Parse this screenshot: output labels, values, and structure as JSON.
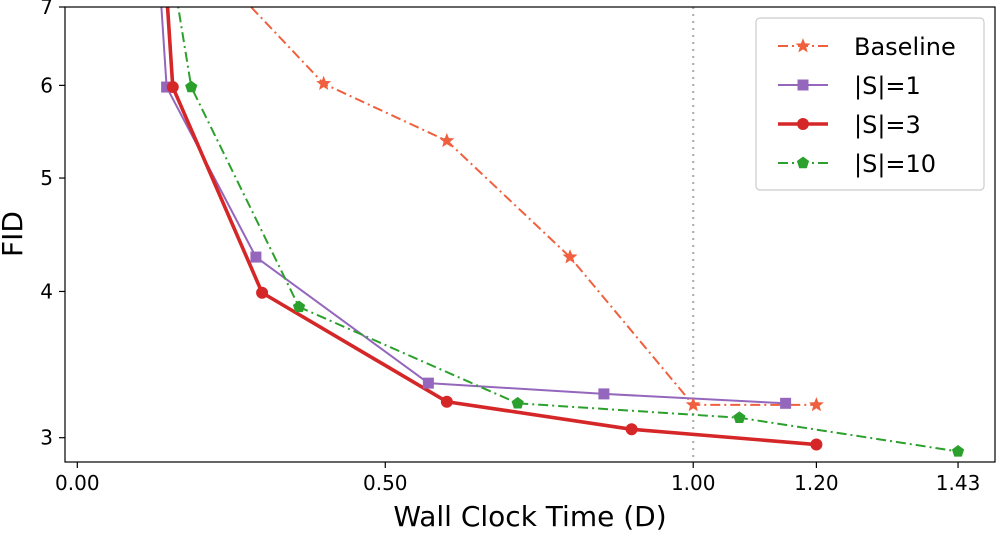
{
  "chart_data": {
    "type": "line",
    "title": "",
    "xlabel": "Wall Clock Time (D)",
    "ylabel": "FID",
    "xlim": [
      -0.02,
      1.49
    ],
    "ylim": [
      2.86,
      7.0
    ],
    "yscale": "log",
    "x_ticks": [
      {
        "value": 0.0,
        "label": "0.00"
      },
      {
        "value": 0.5,
        "label": "0.50"
      },
      {
        "value": 1.0,
        "label": "1.00"
      },
      {
        "value": 1.2,
        "label": "1.20"
      },
      {
        "value": 1.43,
        "label": "1.43"
      }
    ],
    "y_ticks": [
      {
        "value": 3,
        "label": "3"
      },
      {
        "value": 4,
        "label": "4"
      },
      {
        "value": 5,
        "label": "5"
      },
      {
        "value": 6,
        "label": "6"
      },
      {
        "value": 7,
        "label": "7"
      }
    ],
    "reference_line": {
      "x": 1.0,
      "color": "#b0b0b0",
      "style": "dotted"
    },
    "grid": false,
    "legend_position": "top-right",
    "series": [
      {
        "name": "Baseline",
        "color": "#f0603e",
        "line_style": "dashdot",
        "marker": "star",
        "x": [
          0.26,
          0.4,
          0.6,
          0.8,
          1.0,
          1.2
        ],
        "y": [
          7.2,
          6.02,
          5.38,
          4.28,
          3.2,
          3.2
        ]
      },
      {
        "name": "|S|=1",
        "color": "#9467bd",
        "line_style": "solid",
        "marker": "square",
        "x": [
          0.135,
          0.145,
          0.29,
          0.57,
          0.855,
          1.15
        ],
        "y": [
          7.2,
          5.98,
          4.28,
          3.34,
          3.27,
          3.21
        ]
      },
      {
        "name": "|S|=3",
        "color": "#d62728",
        "line_style": "solid",
        "marker": "circle",
        "x": [
          0.145,
          0.155,
          0.3,
          0.6,
          0.9,
          1.2
        ],
        "y": [
          7.2,
          5.98,
          3.99,
          3.22,
          3.05,
          2.96
        ]
      },
      {
        "name": "|S|=10",
        "color": "#2ca02c",
        "line_style": "dashdot",
        "marker": "pentagon",
        "x": [
          0.16,
          0.185,
          0.36,
          0.715,
          1.075,
          1.43
        ],
        "y": [
          7.2,
          5.98,
          3.88,
          3.21,
          3.12,
          2.92
        ]
      }
    ]
  }
}
